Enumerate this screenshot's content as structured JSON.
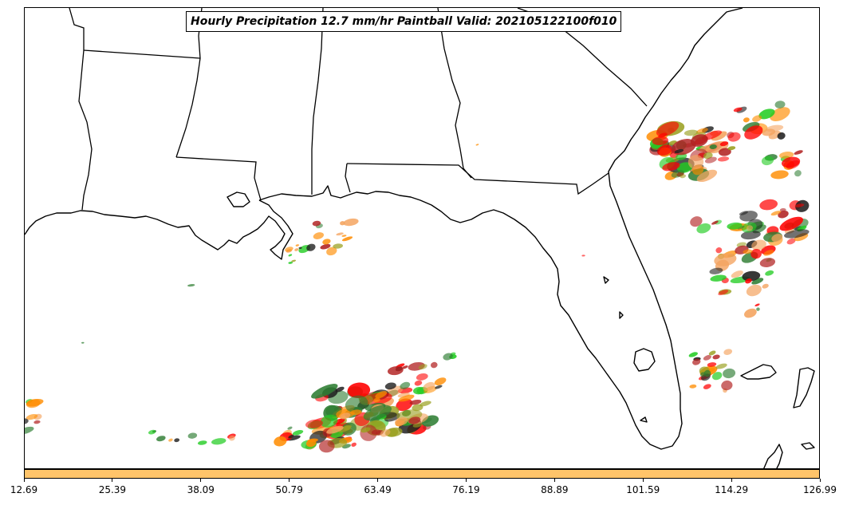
{
  "map": {
    "title": "Hourly Precipitation 12.7 mm/hr Paintball Valid: 202105122100f010",
    "colorbar": {
      "color": "#ffc46a",
      "ticks": [
        "12.69",
        "25.39",
        "38.09",
        "50.79",
        "63.49",
        "76.19",
        "88.89",
        "101.59",
        "114.29",
        "126.99"
      ]
    },
    "paint_colors": [
      "#ff0000",
      "#ff8c00",
      "#22cc22",
      "#b22222",
      "#9aa020",
      "#1e1e1e",
      "#2e7d32",
      "#f4a460"
    ]
  }
}
